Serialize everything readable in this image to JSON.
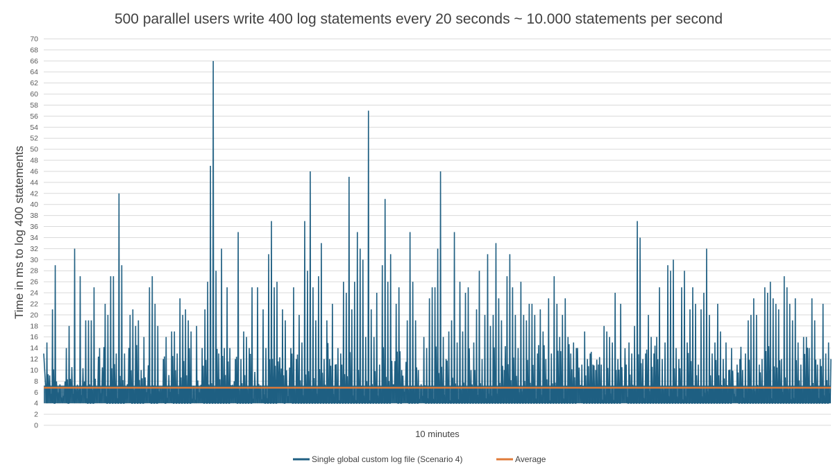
{
  "chart_data": {
    "type": "line",
    "title": "500 parallel users write 400 log statements every 20 seconds ~ 10.000 statements per second",
    "xlabel": "10 minutes",
    "ylabel": "Time in ms to log 400 statements",
    "ylim": [
      0,
      70
    ],
    "yticks": [
      0,
      2,
      4,
      6,
      8,
      10,
      12,
      14,
      16,
      18,
      20,
      22,
      24,
      26,
      28,
      30,
      32,
      34,
      36,
      38,
      40,
      42,
      44,
      46,
      48,
      50,
      52,
      54,
      56,
      58,
      60,
      62,
      64,
      66,
      68,
      70
    ],
    "grid": true,
    "legend_position": "bottom",
    "baseline_min": 4,
    "peaks": [
      [
        1,
        15
      ],
      [
        3,
        21
      ],
      [
        4,
        29
      ],
      [
        8,
        14
      ],
      [
        9,
        18
      ],
      [
        11,
        32
      ],
      [
        13,
        27
      ],
      [
        15,
        19
      ],
      [
        16,
        19
      ],
      [
        17,
        19
      ],
      [
        18,
        25
      ],
      [
        20,
        14
      ],
      [
        22,
        22
      ],
      [
        23,
        20
      ],
      [
        24,
        27
      ],
      [
        25,
        27
      ],
      [
        26,
        13
      ],
      [
        27,
        42
      ],
      [
        28,
        29
      ],
      [
        29,
        13
      ],
      [
        31,
        20
      ],
      [
        32,
        21
      ],
      [
        33,
        18
      ],
      [
        34,
        19
      ],
      [
        35,
        10
      ],
      [
        36,
        16
      ],
      [
        38,
        25
      ],
      [
        39,
        27
      ],
      [
        40,
        22
      ],
      [
        41,
        18
      ],
      [
        43,
        12
      ],
      [
        44,
        16
      ],
      [
        46,
        17
      ],
      [
        47,
        17
      ],
      [
        48,
        13
      ],
      [
        49,
        23
      ],
      [
        50,
        20
      ],
      [
        51,
        21
      ],
      [
        52,
        19
      ],
      [
        53,
        17
      ],
      [
        55,
        18
      ],
      [
        57,
        14
      ],
      [
        58,
        21
      ],
      [
        59,
        26
      ],
      [
        60,
        47
      ],
      [
        61,
        66
      ],
      [
        62,
        28
      ],
      [
        63,
        13
      ],
      [
        64,
        32
      ],
      [
        65,
        14
      ],
      [
        66,
        25
      ],
      [
        67,
        14
      ],
      [
        69,
        12
      ],
      [
        70,
        35
      ],
      [
        71,
        12
      ],
      [
        72,
        17
      ],
      [
        73,
        16
      ],
      [
        74,
        14
      ],
      [
        75,
        25
      ],
      [
        77,
        25
      ],
      [
        79,
        21
      ],
      [
        80,
        14
      ],
      [
        81,
        31
      ],
      [
        82,
        37
      ],
      [
        83,
        25
      ],
      [
        84,
        26
      ],
      [
        86,
        21
      ],
      [
        87,
        19
      ],
      [
        89,
        14
      ],
      [
        90,
        25
      ],
      [
        91,
        12
      ],
      [
        92,
        20
      ],
      [
        93,
        15
      ],
      [
        94,
        37
      ],
      [
        95,
        28
      ],
      [
        96,
        46
      ],
      [
        97,
        25
      ],
      [
        98,
        19
      ],
      [
        99,
        27
      ],
      [
        100,
        33
      ],
      [
        101,
        12
      ],
      [
        102,
        19
      ],
      [
        103,
        12
      ],
      [
        104,
        22
      ],
      [
        105,
        11
      ],
      [
        106,
        14
      ],
      [
        107,
        13
      ],
      [
        108,
        26
      ],
      [
        109,
        24
      ],
      [
        110,
        45
      ],
      [
        111,
        21
      ],
      [
        112,
        26
      ],
      [
        113,
        35
      ],
      [
        114,
        32
      ],
      [
        115,
        30
      ],
      [
        116,
        16
      ],
      [
        117,
        57
      ],
      [
        118,
        21
      ],
      [
        119,
        16
      ],
      [
        120,
        24
      ],
      [
        121,
        11
      ],
      [
        122,
        29
      ],
      [
        123,
        41
      ],
      [
        124,
        26
      ],
      [
        125,
        31
      ],
      [
        127,
        22
      ],
      [
        128,
        25
      ],
      [
        129,
        10
      ],
      [
        131,
        19
      ],
      [
        132,
        35
      ],
      [
        133,
        26
      ],
      [
        134,
        19
      ],
      [
        135,
        10
      ],
      [
        137,
        16
      ],
      [
        138,
        14
      ],
      [
        139,
        23
      ],
      [
        140,
        25
      ],
      [
        141,
        25
      ],
      [
        142,
        32
      ],
      [
        143,
        46
      ],
      [
        144,
        16
      ],
      [
        145,
        12
      ],
      [
        146,
        17
      ],
      [
        147,
        19
      ],
      [
        148,
        35
      ],
      [
        149,
        15
      ],
      [
        150,
        26
      ],
      [
        151,
        17
      ],
      [
        152,
        24
      ],
      [
        153,
        25
      ],
      [
        154,
        10
      ],
      [
        155,
        15
      ],
      [
        156,
        21
      ],
      [
        157,
        28
      ],
      [
        158,
        12
      ],
      [
        159,
        20
      ],
      [
        160,
        31
      ],
      [
        161,
        18
      ],
      [
        162,
        20
      ],
      [
        163,
        33
      ],
      [
        164,
        23
      ],
      [
        165,
        19
      ],
      [
        166,
        10
      ],
      [
        167,
        27
      ],
      [
        168,
        31
      ],
      [
        169,
        25
      ],
      [
        170,
        20
      ],
      [
        171,
        14
      ],
      [
        172,
        26
      ],
      [
        173,
        20
      ],
      [
        174,
        19
      ],
      [
        175,
        22
      ],
      [
        176,
        22
      ],
      [
        177,
        20
      ],
      [
        178,
        13
      ],
      [
        179,
        21
      ],
      [
        180,
        17
      ],
      [
        181,
        12
      ],
      [
        182,
        23
      ],
      [
        183,
        13
      ],
      [
        184,
        27
      ],
      [
        185,
        22
      ],
      [
        186,
        16
      ],
      [
        187,
        20
      ],
      [
        188,
        23
      ],
      [
        189,
        16
      ],
      [
        190,
        13
      ],
      [
        191,
        15
      ],
      [
        192,
        14
      ],
      [
        194,
        11
      ],
      [
        195,
        17
      ],
      [
        196,
        12
      ],
      [
        197,
        13
      ],
      [
        198,
        11
      ],
      [
        199,
        10
      ],
      [
        200,
        11
      ],
      [
        201,
        11
      ],
      [
        202,
        18
      ],
      [
        203,
        17
      ],
      [
        204,
        16
      ],
      [
        205,
        15
      ],
      [
        206,
        24
      ],
      [
        207,
        12
      ],
      [
        208,
        22
      ],
      [
        210,
        11
      ],
      [
        211,
        15
      ],
      [
        212,
        13
      ],
      [
        213,
        18
      ],
      [
        214,
        37
      ],
      [
        215,
        34
      ],
      [
        216,
        12
      ],
      [
        217,
        13
      ],
      [
        218,
        20
      ],
      [
        219,
        16
      ],
      [
        220,
        13
      ],
      [
        221,
        16
      ],
      [
        222,
        25
      ],
      [
        223,
        12
      ],
      [
        224,
        15
      ],
      [
        225,
        29
      ],
      [
        226,
        28
      ],
      [
        227,
        30
      ],
      [
        228,
        14
      ],
      [
        229,
        12
      ],
      [
        230,
        25
      ],
      [
        231,
        28
      ],
      [
        232,
        15
      ],
      [
        233,
        21
      ],
      [
        234,
        25
      ],
      [
        235,
        22
      ],
      [
        236,
        11
      ],
      [
        237,
        21
      ],
      [
        238,
        24
      ],
      [
        239,
        32
      ],
      [
        240,
        20
      ],
      [
        241,
        13
      ],
      [
        242,
        15
      ],
      [
        243,
        22
      ],
      [
        244,
        17
      ],
      [
        245,
        12
      ],
      [
        246,
        15
      ],
      [
        247,
        10
      ],
      [
        248,
        14
      ],
      [
        250,
        11
      ],
      [
        251,
        12
      ],
      [
        252,
        10
      ],
      [
        253,
        13
      ],
      [
        254,
        19
      ],
      [
        255,
        20
      ],
      [
        256,
        23
      ],
      [
        257,
        20
      ],
      [
        258,
        11
      ],
      [
        259,
        12
      ],
      [
        260,
        25
      ],
      [
        261,
        24
      ],
      [
        262,
        26
      ],
      [
        263,
        23
      ],
      [
        264,
        22
      ],
      [
        265,
        21
      ],
      [
        266,
        12
      ],
      [
        267,
        27
      ],
      [
        268,
        25
      ],
      [
        269,
        22
      ],
      [
        270,
        19
      ],
      [
        271,
        23
      ],
      [
        272,
        15
      ],
      [
        273,
        11
      ],
      [
        274,
        16
      ],
      [
        275,
        16
      ],
      [
        276,
        14
      ],
      [
        277,
        23
      ],
      [
        278,
        19
      ],
      [
        279,
        11
      ],
      [
        280,
        12
      ],
      [
        281,
        22
      ],
      [
        282,
        13
      ],
      [
        283,
        15
      ]
    ],
    "series": [
      {
        "name": "Single global custom log file (Scenario 4)",
        "color": "#1f5f82"
      },
      {
        "name": "Average",
        "color": "#e07b39",
        "value": 6.8
      }
    ]
  }
}
